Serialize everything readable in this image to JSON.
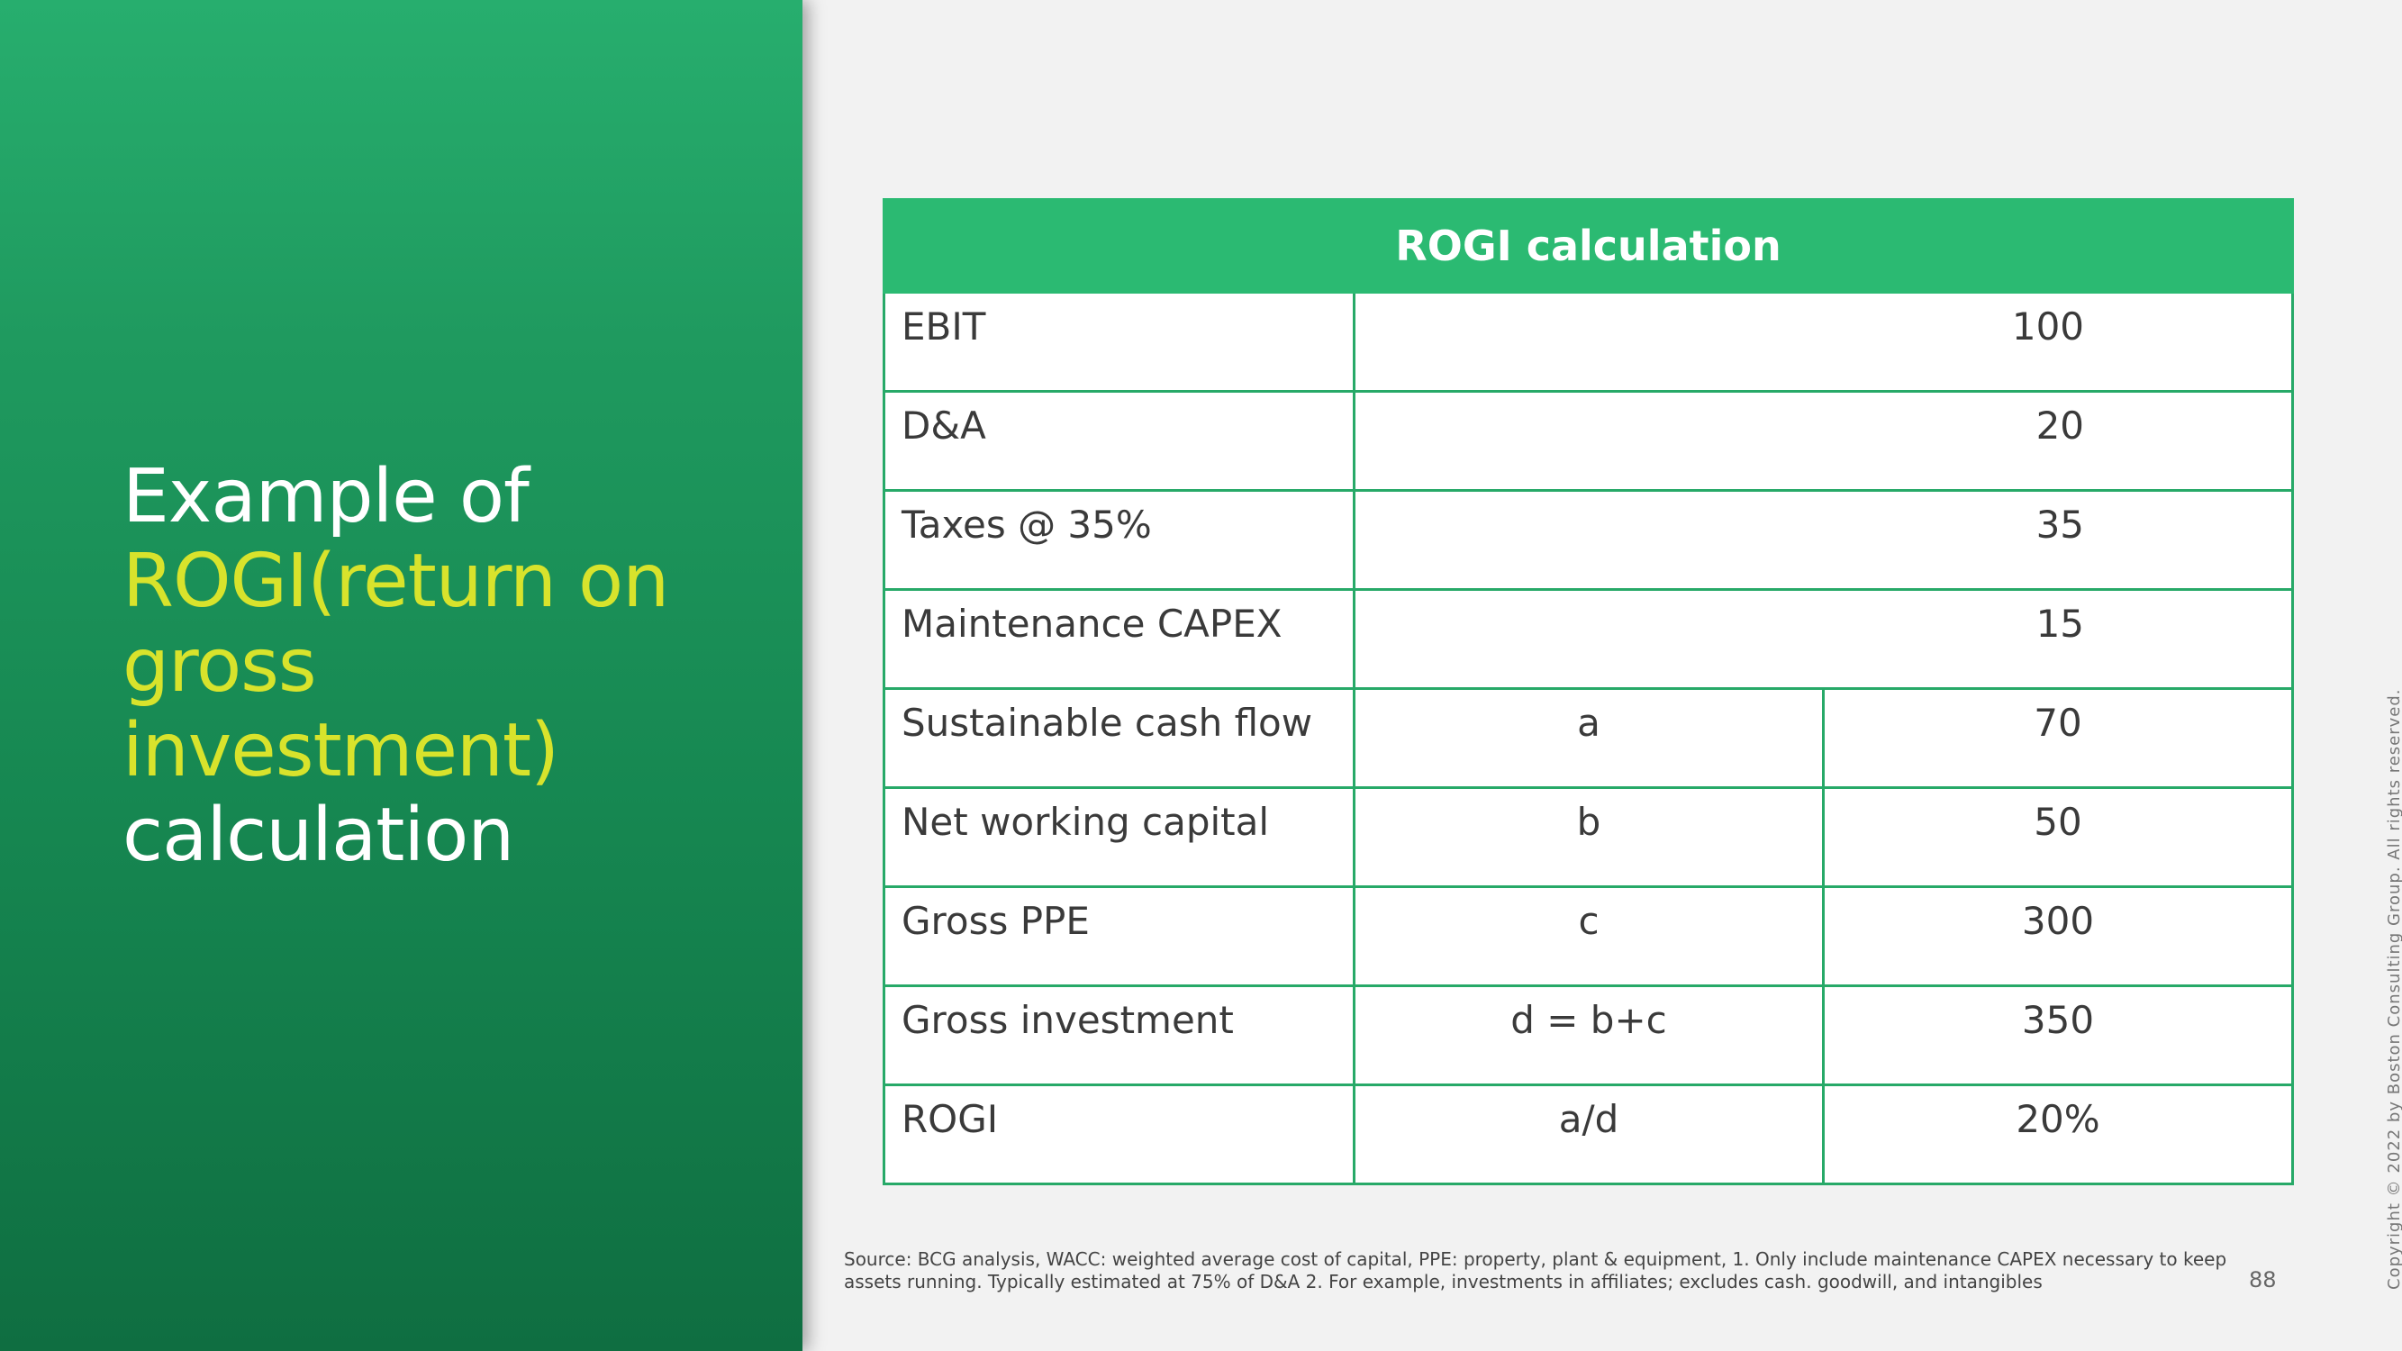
{
  "slide": {
    "title_parts": [
      {
        "text": "Example of ",
        "highlight": false
      },
      {
        "text": "ROGI(return on gross investment)",
        "highlight": true
      },
      {
        "text": " calculation",
        "highlight": false
      }
    ],
    "page_number": "88",
    "copyright": "Copyright © 2022 by Boston Consulting Group. All rights reserved.",
    "source_note": "Source: BCG analysis, WACC: weighted average cost of capital, PPE: property, plant & equipment, 1. Only include maintenance CAPEX necessary to keep assets running. Typically estimated at 75% of D&A  2. For example, investments in affiliates; excludes cash. goodwill, and intangibles"
  },
  "colors": {
    "panel_green": "#1f9a5f",
    "table_header_green": "#2bba72",
    "title_highlight": "#d8e32c"
  },
  "table": {
    "header": "ROGI calculation",
    "rows": [
      {
        "label": "EBIT",
        "formula": null,
        "value": "100"
      },
      {
        "label": "D&A",
        "formula": null,
        "value": "20"
      },
      {
        "label": "Taxes @ 35%",
        "formula": null,
        "value": "35"
      },
      {
        "label": "Maintenance CAPEX",
        "formula": null,
        "value": "15"
      },
      {
        "label": "Sustainable cash flow",
        "formula": "a",
        "value": "70"
      },
      {
        "label": "Net working capital",
        "formula": "b",
        "value": "50"
      },
      {
        "label": "Gross PPE",
        "formula": "c",
        "value": "300"
      },
      {
        "label": "Gross investment",
        "formula": "d = b+c",
        "value": "350"
      },
      {
        "label": "ROGI",
        "formula": "a/d",
        "value": "20%"
      }
    ]
  }
}
